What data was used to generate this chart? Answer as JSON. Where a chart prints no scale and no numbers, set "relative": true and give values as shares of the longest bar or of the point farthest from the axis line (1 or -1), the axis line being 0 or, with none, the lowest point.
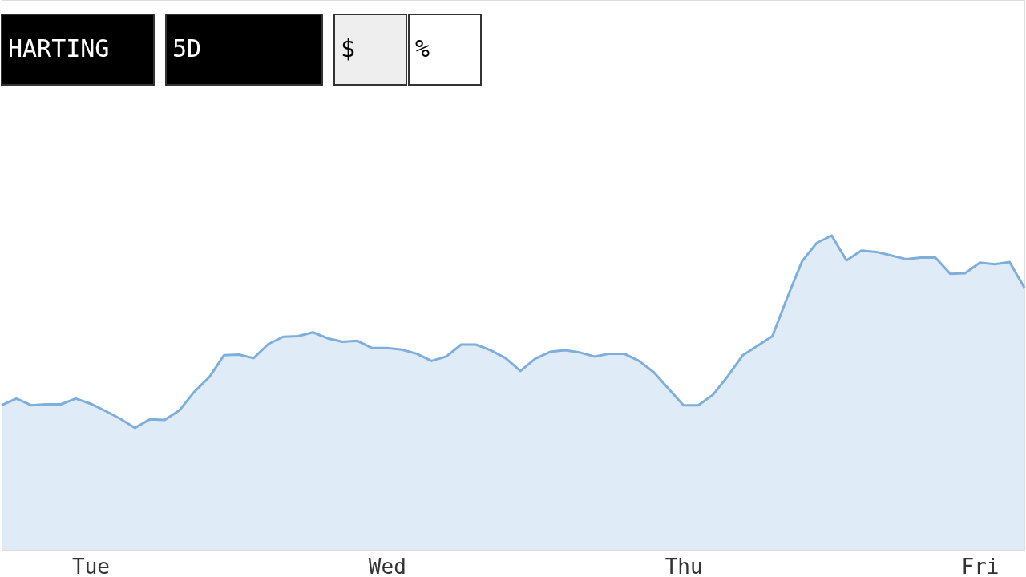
{
  "chart_data": {
    "type": "area",
    "relative": true,
    "annotations": [
      "HARTING",
      "5D",
      "$",
      "%"
    ],
    "categories": [
      null,
      null,
      null,
      null,
      null,
      null,
      "Tue",
      null,
      null,
      null,
      null,
      null,
      null,
      null,
      null,
      null,
      null,
      null,
      null,
      null,
      null,
      null,
      null,
      null,
      null,
      null,
      "Wed",
      null,
      null,
      null,
      null,
      null,
      null,
      null,
      null,
      null,
      null,
      null,
      null,
      null,
      null,
      null,
      null,
      null,
      null,
      null,
      "Thu",
      null,
      null,
      null,
      null,
      null,
      null,
      null,
      null,
      null,
      null,
      null,
      null,
      null,
      null,
      null,
      null,
      null,
      null,
      null,
      "Fri",
      null,
      null,
      null
    ],
    "series": [
      {
        "color": "#7eaedb",
        "values": [
          0.46,
          0.481,
          0.46,
          0.463,
          0.463,
          0.481,
          0.465,
          0.442,
          0.417,
          0.388,
          0.415,
          0.413,
          0.444,
          0.503,
          0.549,
          0.619,
          0.621,
          0.61,
          0.655,
          0.678,
          0.68,
          0.692,
          0.673,
          0.662,
          0.665,
          0.642,
          0.642,
          0.637,
          0.624,
          0.601,
          0.615,
          0.653,
          0.653,
          0.635,
          0.61,
          0.569,
          0.608,
          0.63,
          0.635,
          0.628,
          0.615,
          0.624,
          0.624,
          0.601,
          0.565,
          0.512,
          0.46,
          0.46,
          0.494,
          0.553,
          0.619,
          0.649,
          0.68,
          0.803,
          0.918,
          0.977,
          1.0,
          0.921,
          0.952,
          0.948,
          0.937,
          0.925,
          0.93,
          0.93,
          0.878,
          0.88,
          0.914,
          0.909,
          0.916,
          0.834
        ]
      }
    ]
  }
}
